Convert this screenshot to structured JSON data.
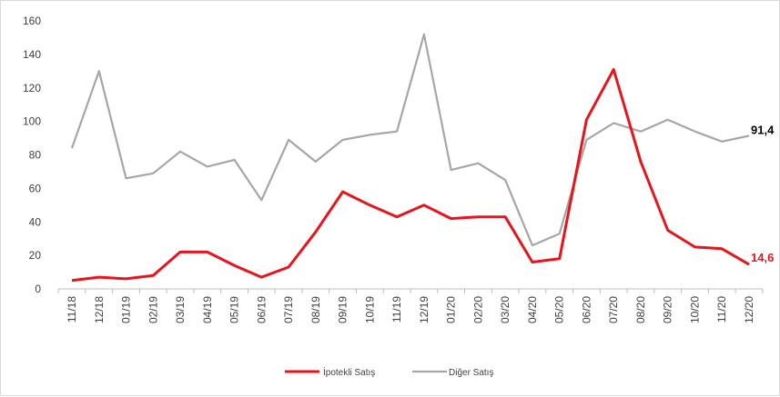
{
  "chart_data": {
    "type": "line",
    "categories": [
      "11/18",
      "12/18",
      "01/19",
      "02/19",
      "03/19",
      "04/19",
      "05/19",
      "06/19",
      "07/19",
      "08/19",
      "09/19",
      "10/19",
      "11/19",
      "12/19",
      "01/20",
      "02/20",
      "03/20",
      "04/20",
      "05/20",
      "06/20",
      "07/20",
      "08/20",
      "09/20",
      "10/20",
      "11/20",
      "12/20"
    ],
    "series": [
      {
        "name": "İpotekli Satış",
        "color": "#e8141c",
        "values": [
          5,
          7,
          6,
          8,
          22,
          22,
          14,
          7,
          13,
          34,
          58,
          50,
          43,
          50,
          42,
          43,
          43,
          16,
          18,
          101,
          131,
          76,
          35,
          25,
          24,
          14.6
        ],
        "end_label": "14,6"
      },
      {
        "name": "Diğer Satış",
        "color": "#a6a6a6",
        "values": [
          84,
          130,
          66,
          69,
          82,
          73,
          77,
          53,
          89,
          76,
          89,
          92,
          94,
          152,
          71,
          75,
          65,
          26,
          33,
          89,
          99,
          94,
          101,
          94,
          88,
          91.4
        ],
        "end_label": "91,4"
      }
    ],
    "ylim": [
      0,
      160
    ],
    "yticks": [
      0,
      20,
      40,
      60,
      80,
      100,
      120,
      140,
      160
    ],
    "grid": false,
    "legend_position": "bottom",
    "title": "",
    "xlabel": "",
    "ylabel": ""
  }
}
